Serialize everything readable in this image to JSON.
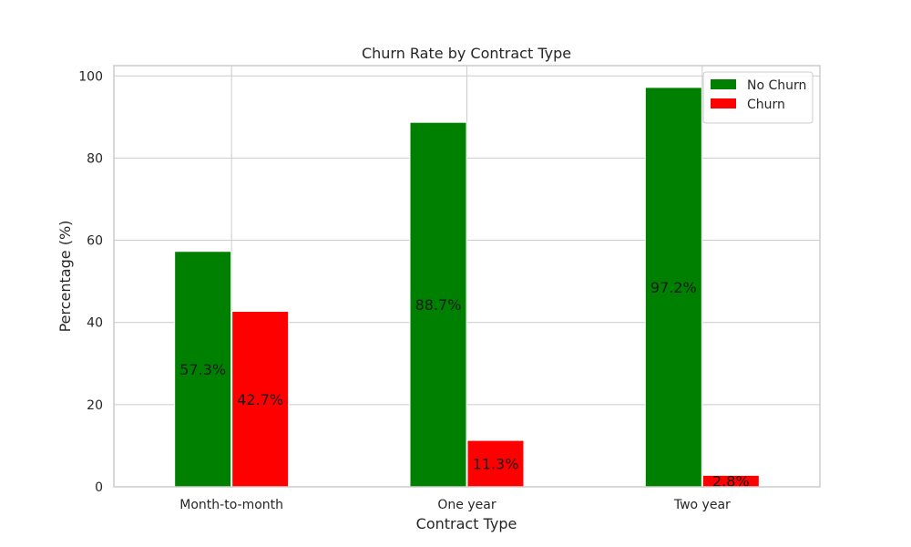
{
  "chart_data": {
    "type": "bar",
    "title": "Churn Rate by Contract Type",
    "xlabel": "Contract Type",
    "ylabel": "Percentage (%)",
    "categories": [
      "Month-to-month",
      "One year",
      "Two year"
    ],
    "series": [
      {
        "name": "No Churn",
        "values": [
          57.3,
          88.7,
          97.2
        ],
        "labels": [
          "57.3%",
          "88.7%",
          "97.2%"
        ],
        "color": "#008000"
      },
      {
        "name": "Churn",
        "values": [
          42.7,
          11.3,
          2.8
        ],
        "labels": [
          "42.7%",
          "11.3%",
          "2.8%"
        ],
        "color": "#ff0000"
      }
    ],
    "ylim": [
      0,
      102.5
    ],
    "yticks": [
      0,
      20,
      40,
      60,
      80,
      100
    ],
    "grid": true,
    "legend": "top-right"
  }
}
